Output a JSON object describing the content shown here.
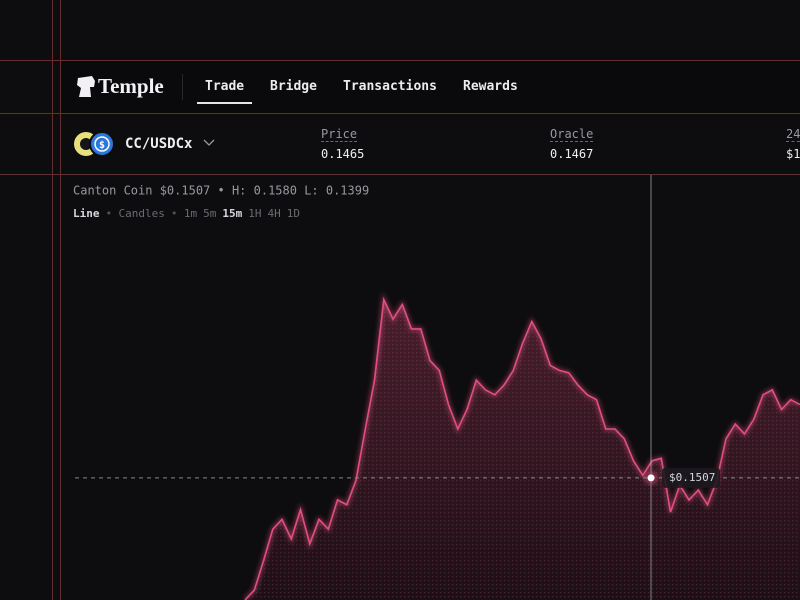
{
  "header": {
    "logo": "Temple",
    "nav": [
      "Trade",
      "Bridge",
      "Transactions",
      "Rewards"
    ],
    "active_nav": 0
  },
  "market": {
    "pair": "CC/USDCx",
    "stats": [
      {
        "label": "Price",
        "value": "0.1465"
      },
      {
        "label": "Oracle",
        "value": "0.1467"
      },
      {
        "label": "24",
        "value": "$1"
      }
    ]
  },
  "chart_data": {
    "type": "line",
    "info": "Canton Coin $0.1507 • H: 0.1580 L: 0.1399",
    "modes": [
      "Line",
      "Candles"
    ],
    "intervals": [
      "1m",
      "5m",
      "15m",
      "1H",
      "4H",
      "1D"
    ],
    "active_interval": 2,
    "color": "#e0507e",
    "ylim": [
      0.1457,
      0.1631
    ],
    "values": [
      0.1457,
      0.1461,
      0.1473,
      0.1486,
      0.149,
      0.1482,
      0.1494,
      0.148,
      0.149,
      0.1486,
      0.1498,
      0.1496,
      0.1506,
      0.1527,
      0.1547,
      0.158,
      0.1572,
      0.1578,
      0.1568,
      0.1568,
      0.1555,
      0.1551,
      0.1537,
      0.1527,
      0.1535,
      0.1547,
      0.1543,
      0.1541,
      0.1545,
      0.1551,
      0.1562,
      0.1571,
      0.1564,
      0.1553,
      0.1551,
      0.155,
      0.1545,
      0.1541,
      0.1539,
      0.1527,
      0.1527,
      0.1523,
      0.1514,
      0.1508,
      0.1514,
      0.1515,
      0.1493,
      0.1504,
      0.1498,
      0.1502,
      0.1496,
      0.1506,
      0.1523,
      0.1529,
      0.1525,
      0.1531,
      0.1541,
      0.1543,
      0.1535,
      0.1539,
      0.1537
    ],
    "crosshair": {
      "value": 0.1507,
      "label": "$0.1507"
    }
  }
}
